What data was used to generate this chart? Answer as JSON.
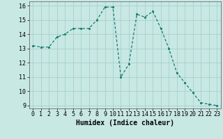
{
  "x": [
    0,
    1,
    2,
    3,
    4,
    5,
    6,
    7,
    8,
    9,
    10,
    11,
    12,
    13,
    14,
    15,
    16,
    17,
    18,
    19,
    20,
    21,
    22,
    23
  ],
  "y": [
    13.2,
    13.1,
    13.1,
    13.8,
    14.0,
    14.4,
    14.4,
    14.4,
    15.0,
    15.9,
    15.9,
    11.0,
    11.9,
    15.4,
    15.2,
    15.6,
    14.4,
    13.0,
    11.3,
    10.6,
    9.9,
    9.2,
    9.1,
    9.0
  ],
  "line_color": "#1a7a6e",
  "bg_color": "#c8e8e4",
  "grid_color": "#a0ccc8",
  "xlabel": "Humidex (Indice chaleur)",
  "ylim": [
    8.8,
    16.3
  ],
  "xlim": [
    -0.5,
    23.5
  ],
  "yticks": [
    9,
    10,
    11,
    12,
    13,
    14,
    15,
    16
  ],
  "xticks": [
    0,
    1,
    2,
    3,
    4,
    5,
    6,
    7,
    8,
    9,
    10,
    11,
    12,
    13,
    14,
    15,
    16,
    17,
    18,
    19,
    20,
    21,
    22,
    23
  ],
  "xlabel_fontsize": 7,
  "tick_fontsize": 6,
  "marker_size": 2.5,
  "line_width": 0.9
}
